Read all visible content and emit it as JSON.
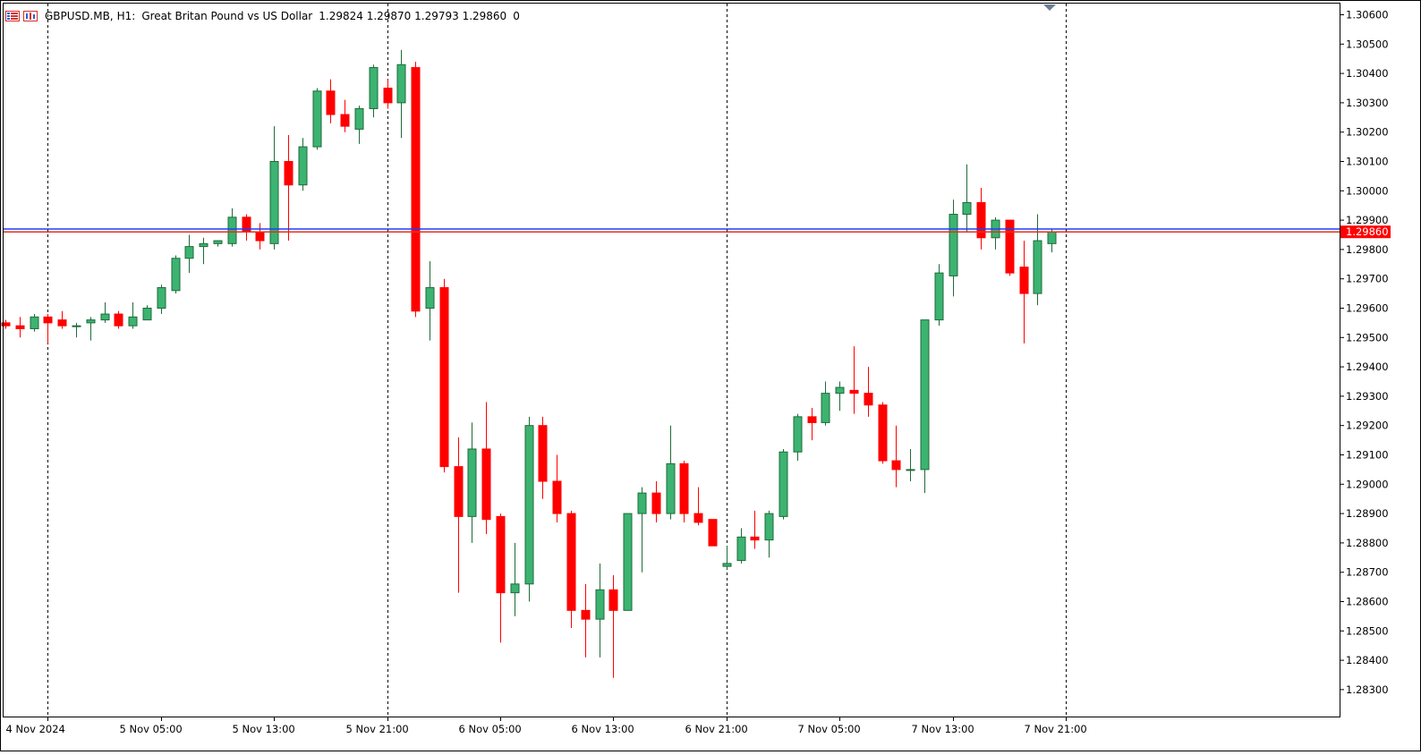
{
  "header": {
    "symbol": "GBPUSD.MB,",
    "timeframe": "H1:",
    "description": "Great Britan Pound vs US Dollar",
    "ohlc": "1.29824 1.29870 1.29793 1.29860",
    "volume": "0"
  },
  "colors": {
    "bull": "#3cb371",
    "bear": "#ff0000",
    "ask_line": "#1e3cff",
    "bid_line": "#e0301e",
    "price_tag": "#ff0000",
    "grid_separator": "#000000"
  },
  "icons": [
    "chart-list-icon",
    "chart-window-icon"
  ],
  "chart_data": {
    "type": "candlestick",
    "symbol": "GBPUSD.MB",
    "timeframe": "H1",
    "current_price": "1.29860",
    "ask_price": 1.2987,
    "bid_price": 1.2986,
    "ylim": [
      1.2825,
      1.3062
    ],
    "y_ticks": [
      "1.30600",
      "1.30500",
      "1.30400",
      "1.30300",
      "1.30200",
      "1.30100",
      "1.30000",
      "1.29900",
      "1.29800",
      "1.29700",
      "1.29600",
      "1.29500",
      "1.29400",
      "1.29300",
      "1.29200",
      "1.29100",
      "1.29000",
      "1.28900",
      "1.28800",
      "1.28700",
      "1.28600",
      "1.28500",
      "1.28400",
      "1.28300"
    ],
    "x_labels": [
      {
        "index": 3,
        "label": "4 Nov 2024"
      },
      {
        "index": 11,
        "label": "5 Nov 05:00"
      },
      {
        "index": 19,
        "label": "5 Nov 13:00"
      },
      {
        "index": 27,
        "label": "5 Nov 21:00"
      },
      {
        "index": 35,
        "label": "6 Nov 05:00"
      },
      {
        "index": 43,
        "label": "6 Nov 13:00"
      },
      {
        "index": 51,
        "label": "6 Nov 21:00"
      },
      {
        "index": 59,
        "label": "7 Nov 05:00"
      },
      {
        "index": 67,
        "label": "7 Nov 13:00"
      },
      {
        "index": 75,
        "label": "7 Nov 21:00"
      }
    ],
    "day_separators": [
      3,
      27,
      51,
      75
    ],
    "candles": [
      {
        "o": 1.2955,
        "h": 1.2956,
        "l": 1.2953,
        "c": 1.2954
      },
      {
        "o": 1.2954,
        "h": 1.2957,
        "l": 1.295,
        "c": 1.2953
      },
      {
        "o": 1.2953,
        "h": 1.2958,
        "l": 1.2952,
        "c": 1.2957
      },
      {
        "o": 1.2957,
        "h": 1.2958,
        "l": 1.2948,
        "c": 1.2955
      },
      {
        "o": 1.2956,
        "h": 1.2959,
        "l": 1.2953,
        "c": 1.2954
      },
      {
        "o": 1.2954,
        "h": 1.2955,
        "l": 1.295,
        "c": 1.2954
      },
      {
        "o": 1.2955,
        "h": 1.2957,
        "l": 1.2949,
        "c": 1.2956
      },
      {
        "o": 1.2956,
        "h": 1.2962,
        "l": 1.2955,
        "c": 1.2958
      },
      {
        "o": 1.2958,
        "h": 1.2959,
        "l": 1.2953,
        "c": 1.2954
      },
      {
        "o": 1.2954,
        "h": 1.2962,
        "l": 1.2953,
        "c": 1.2957
      },
      {
        "o": 1.2956,
        "h": 1.2961,
        "l": 1.2956,
        "c": 1.296
      },
      {
        "o": 1.296,
        "h": 1.2968,
        "l": 1.2958,
        "c": 1.2967
      },
      {
        "o": 1.2966,
        "h": 1.2978,
        "l": 1.2965,
        "c": 1.2977
      },
      {
        "o": 1.2977,
        "h": 1.2985,
        "l": 1.2972,
        "c": 1.2981
      },
      {
        "o": 1.2981,
        "h": 1.2984,
        "l": 1.2975,
        "c": 1.2982
      },
      {
        "o": 1.2982,
        "h": 1.2983,
        "l": 1.2981,
        "c": 1.2983
      },
      {
        "o": 1.2982,
        "h": 1.2994,
        "l": 1.2981,
        "c": 1.2991
      },
      {
        "o": 1.2991,
        "h": 1.2992,
        "l": 1.2983,
        "c": 1.2986
      },
      {
        "o": 1.2986,
        "h": 1.2989,
        "l": 1.298,
        "c": 1.2983
      },
      {
        "o": 1.2982,
        "h": 1.3022,
        "l": 1.298,
        "c": 1.301
      },
      {
        "o": 1.301,
        "h": 1.3019,
        "l": 1.2983,
        "c": 1.3002
      },
      {
        "o": 1.3002,
        "h": 1.3018,
        "l": 1.3,
        "c": 1.3015
      },
      {
        "o": 1.3015,
        "h": 1.3035,
        "l": 1.3014,
        "c": 1.3034
      },
      {
        "o": 1.3034,
        "h": 1.3038,
        "l": 1.3023,
        "c": 1.3026
      },
      {
        "o": 1.3026,
        "h": 1.3031,
        "l": 1.302,
        "c": 1.3022
      },
      {
        "o": 1.3021,
        "h": 1.3029,
        "l": 1.3016,
        "c": 1.3028
      },
      {
        "o": 1.3028,
        "h": 1.3043,
        "l": 1.3025,
        "c": 1.3042
      },
      {
        "o": 1.3035,
        "h": 1.3038,
        "l": 1.3028,
        "c": 1.303
      },
      {
        "o": 1.303,
        "h": 1.3048,
        "l": 1.3018,
        "c": 1.3043
      },
      {
        "o": 1.3042,
        "h": 1.3044,
        "l": 1.2957,
        "c": 1.2959
      },
      {
        "o": 1.296,
        "h": 1.2976,
        "l": 1.2949,
        "c": 1.2967
      },
      {
        "o": 1.2967,
        "h": 1.297,
        "l": 1.2904,
        "c": 1.2906
      },
      {
        "o": 1.2906,
        "h": 1.2916,
        "l": 1.2863,
        "c": 1.2889
      },
      {
        "o": 1.2889,
        "h": 1.2921,
        "l": 1.288,
        "c": 1.2912
      },
      {
        "o": 1.2912,
        "h": 1.2928,
        "l": 1.2883,
        "c": 1.2888
      },
      {
        "o": 1.2889,
        "h": 1.289,
        "l": 1.2846,
        "c": 1.2863
      },
      {
        "o": 1.2863,
        "h": 1.288,
        "l": 1.2855,
        "c": 1.2866
      },
      {
        "o": 1.2866,
        "h": 1.2923,
        "l": 1.286,
        "c": 1.292
      },
      {
        "o": 1.292,
        "h": 1.2923,
        "l": 1.2895,
        "c": 1.2901
      },
      {
        "o": 1.2901,
        "h": 1.291,
        "l": 1.2887,
        "c": 1.289
      },
      {
        "o": 1.289,
        "h": 1.2891,
        "l": 1.2851,
        "c": 1.2857
      },
      {
        "o": 1.2857,
        "h": 1.2866,
        "l": 1.2841,
        "c": 1.2854
      },
      {
        "o": 1.2854,
        "h": 1.2873,
        "l": 1.2841,
        "c": 1.2864
      },
      {
        "o": 1.2864,
        "h": 1.2869,
        "l": 1.2834,
        "c": 1.2857
      },
      {
        "o": 1.2857,
        "h": 1.289,
        "l": 1.2857,
        "c": 1.289
      },
      {
        "o": 1.289,
        "h": 1.2899,
        "l": 1.287,
        "c": 1.2897
      },
      {
        "o": 1.2897,
        "h": 1.2901,
        "l": 1.2887,
        "c": 1.289
      },
      {
        "o": 1.289,
        "h": 1.292,
        "l": 1.2888,
        "c": 1.2907
      },
      {
        "o": 1.2907,
        "h": 1.2908,
        "l": 1.2887,
        "c": 1.289
      },
      {
        "o": 1.289,
        "h": 1.2899,
        "l": 1.2886,
        "c": 1.2887
      },
      {
        "o": 1.2888,
        "h": 1.2888,
        "l": 1.2879,
        "c": 1.2879
      },
      {
        "o": 1.2872,
        "h": 1.2879,
        "l": 1.2871,
        "c": 1.2873
      },
      {
        "o": 1.2874,
        "h": 1.2885,
        "l": 1.2873,
        "c": 1.2882
      },
      {
        "o": 1.2882,
        "h": 1.2891,
        "l": 1.2878,
        "c": 1.2881
      },
      {
        "o": 1.2881,
        "h": 1.2891,
        "l": 1.2875,
        "c": 1.289
      },
      {
        "o": 1.2889,
        "h": 1.2912,
        "l": 1.2888,
        "c": 1.2911
      },
      {
        "o": 1.2911,
        "h": 1.2924,
        "l": 1.2908,
        "c": 1.2923
      },
      {
        "o": 1.2923,
        "h": 1.2926,
        "l": 1.2915,
        "c": 1.2921
      },
      {
        "o": 1.2921,
        "h": 1.2935,
        "l": 1.292,
        "c": 1.2931
      },
      {
        "o": 1.2931,
        "h": 1.2935,
        "l": 1.2925,
        "c": 1.2933
      },
      {
        "o": 1.2932,
        "h": 1.2947,
        "l": 1.2924,
        "c": 1.2931
      },
      {
        "o": 1.2931,
        "h": 1.294,
        "l": 1.2923,
        "c": 1.2927
      },
      {
        "o": 1.2927,
        "h": 1.2928,
        "l": 1.2907,
        "c": 1.2908
      },
      {
        "o": 1.2908,
        "h": 1.292,
        "l": 1.2899,
        "c": 1.2905
      },
      {
        "o": 1.2905,
        "h": 1.2912,
        "l": 1.2901,
        "c": 1.2905
      },
      {
        "o": 1.2905,
        "h": 1.2956,
        "l": 1.2897,
        "c": 1.2956
      },
      {
        "o": 1.2956,
        "h": 1.2975,
        "l": 1.2954,
        "c": 1.2972
      },
      {
        "o": 1.2971,
        "h": 1.2997,
        "l": 1.2964,
        "c": 1.2992
      },
      {
        "o": 1.2992,
        "h": 1.3009,
        "l": 1.2986,
        "c": 1.2996
      },
      {
        "o": 1.2996,
        "h": 1.3001,
        "l": 1.298,
        "c": 1.2984
      },
      {
        "o": 1.2984,
        "h": 1.2991,
        "l": 1.298,
        "c": 1.299
      },
      {
        "o": 1.299,
        "h": 1.299,
        "l": 1.2971,
        "c": 1.2972
      },
      {
        "o": 1.2974,
        "h": 1.2983,
        "l": 1.2948,
        "c": 1.2965
      },
      {
        "o": 1.2965,
        "h": 1.2992,
        "l": 1.2961,
        "c": 1.2983
      },
      {
        "o": 1.2982,
        "h": 1.2987,
        "l": 1.2979,
        "c": 1.2986
      }
    ]
  }
}
